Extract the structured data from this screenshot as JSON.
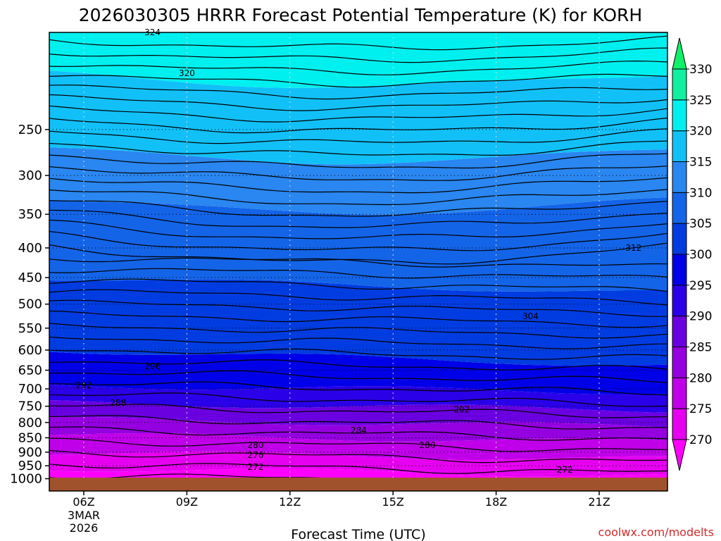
{
  "chart_data": {
    "type": "contour",
    "title": "2026030305 HRRR Forecast Potential Temperature (K) for KORH",
    "xlabel": "Forecast Time (UTC)",
    "ylabel": "",
    "x_ticks": [
      "06Z",
      "09Z",
      "12Z",
      "15Z",
      "18Z",
      "21Z"
    ],
    "x_date_label": [
      "3MAR",
      "2026"
    ],
    "y_ticks": [
      250,
      300,
      350,
      400,
      450,
      500,
      550,
      600,
      650,
      700,
      750,
      800,
      850,
      900,
      950,
      1000
    ],
    "y_axis_reversed": true,
    "grid": "dotted",
    "colorbar": {
      "levels": [
        270,
        275,
        280,
        285,
        290,
        295,
        300,
        305,
        310,
        315,
        320,
        325,
        330
      ],
      "colors": [
        "#ff00ff",
        "#e600f0",
        "#bf00e8",
        "#9400e0",
        "#6a00e0",
        "#2a00e8",
        "#0000e8",
        "#003ce0",
        "#1464e8",
        "#2a86f0",
        "#12c0f8",
        "#00f0f0",
        "#10f0a0",
        "#10f068"
      ],
      "placement": "right",
      "extend": "both"
    },
    "contour_labels": [
      {
        "text": "324",
        "x": "08Z",
        "p": 170
      },
      {
        "text": "320",
        "x": "09Z",
        "p": 200
      },
      {
        "text": "312",
        "x": "22Z",
        "p": 400
      },
      {
        "text": "304",
        "x": "19Z",
        "p": 525
      },
      {
        "text": "296",
        "x": "08Z",
        "p": 640
      },
      {
        "text": "292",
        "x": "06Z",
        "p": 690
      },
      {
        "text": "292",
        "x": "17Z",
        "p": 760
      },
      {
        "text": "288",
        "x": "07Z",
        "p": 740
      },
      {
        "text": "284",
        "x": "14Z",
        "p": 825
      },
      {
        "text": "280",
        "x": "11Z",
        "p": 875
      },
      {
        "text": "280",
        "x": "16Z",
        "p": 875
      },
      {
        "text": "276",
        "x": "11Z",
        "p": 910
      },
      {
        "text": "272",
        "x": "11Z",
        "p": 955
      },
      {
        "text": "272",
        "x": "20Z",
        "p": 965
      }
    ],
    "credit": "coolwx.com/modelts"
  },
  "colors": {
    "ground": "#a0522d",
    "grid": "#d8d8d8"
  }
}
